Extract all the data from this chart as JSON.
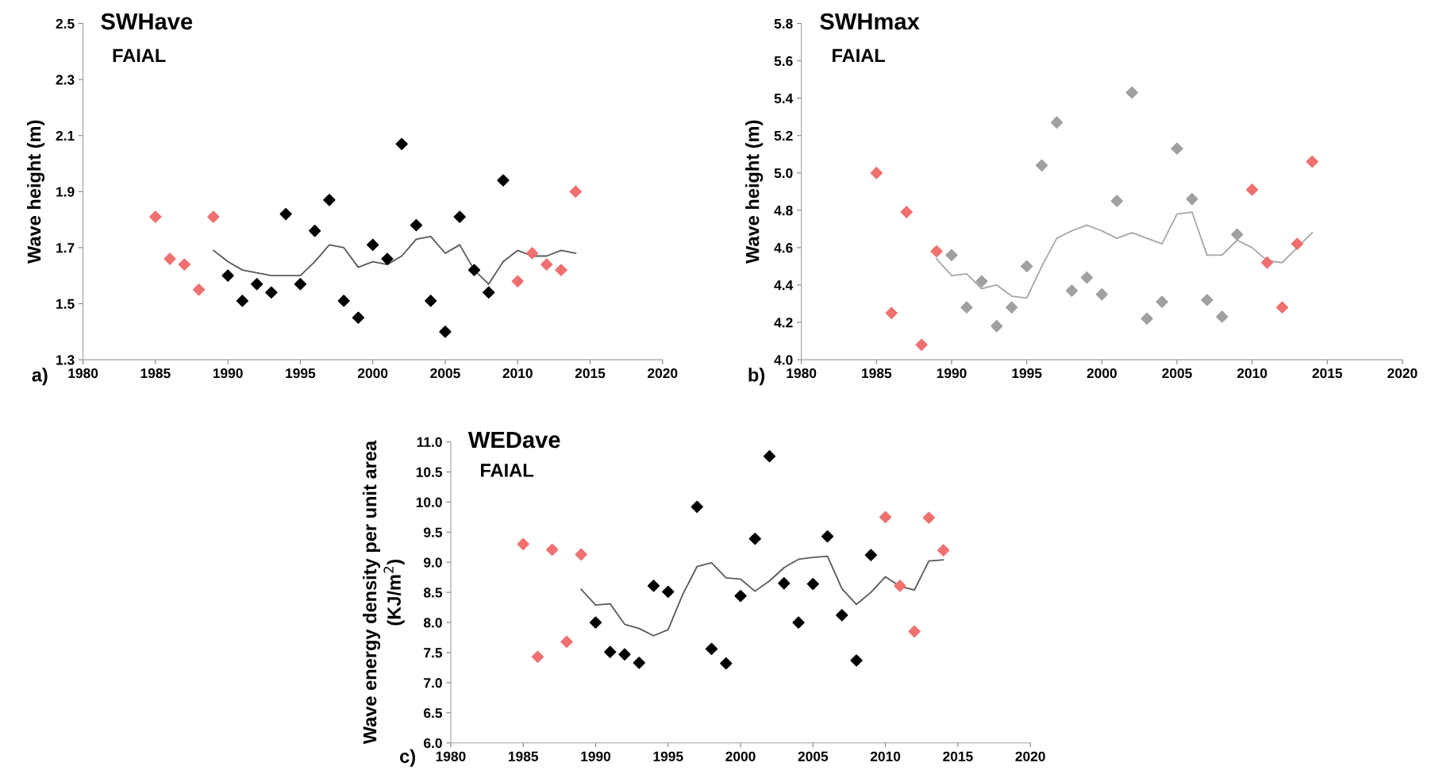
{
  "chart_data": [
    {
      "type": "scatter",
      "title": "SWHave",
      "ylabel": "Wave height (m)",
      "annotations": [
        "FAIAL",
        "a)"
      ],
      "xlim": [
        1980,
        2020
      ],
      "xticks": [
        1980,
        1985,
        1990,
        1995,
        2000,
        2005,
        2010,
        2015,
        2020
      ],
      "ylim": [
        1.3,
        2.5
      ],
      "yticks": [
        1.3,
        1.5,
        1.7,
        1.9,
        2.1,
        2.3,
        2.5
      ],
      "grid": false,
      "legend": false,
      "series": [
        {
          "marker": "diamond",
          "color": "#f07070",
          "x": [
            1985,
            1986,
            1987,
            1988,
            1989,
            2010,
            2011,
            2012,
            2013,
            2014
          ],
          "values": [
            1.81,
            1.66,
            1.64,
            1.55,
            1.81,
            1.58,
            1.68,
            1.64,
            1.62,
            1.9
          ]
        },
        {
          "marker": "diamond",
          "color": "#000000",
          "x": [
            1990,
            1991,
            1992,
            1993,
            1994,
            1995,
            1996,
            1997,
            1998,
            1999,
            2000,
            2001,
            2002,
            2003,
            2004,
            2005,
            2006,
            2007,
            2008,
            2009
          ],
          "values": [
            1.6,
            1.51,
            1.57,
            1.54,
            1.82,
            1.57,
            1.76,
            1.87,
            1.51,
            1.45,
            1.71,
            1.66,
            2.07,
            1.78,
            1.51,
            1.4,
            1.81,
            1.62,
            1.54,
            1.94
          ]
        },
        {
          "type": "line",
          "marker": "none",
          "line_style": "solid",
          "color": "#595959",
          "x": [
            1989,
            1990,
            1991,
            1992,
            1993,
            1994,
            1995,
            1996,
            1997,
            1998,
            1999,
            2000,
            2001,
            2002,
            2003,
            2004,
            2005,
            2006,
            2007,
            2008,
            2009,
            2010,
            2011,
            2012,
            2013,
            2014
          ],
          "values": [
            1.69,
            1.65,
            1.62,
            1.61,
            1.6,
            1.6,
            1.6,
            1.65,
            1.71,
            1.7,
            1.63,
            1.65,
            1.64,
            1.67,
            1.73,
            1.74,
            1.68,
            1.71,
            1.62,
            1.57,
            1.65,
            1.69,
            1.67,
            1.67,
            1.69,
            1.68
          ]
        }
      ]
    },
    {
      "type": "scatter",
      "title": "SWHmax",
      "ylabel": "Wave height (m)",
      "annotations": [
        "FAIAL",
        "b)"
      ],
      "xlim": [
        1980,
        2020
      ],
      "xticks": [
        1980,
        1985,
        1990,
        1995,
        2000,
        2005,
        2010,
        2015,
        2020
      ],
      "ylim": [
        4.0,
        5.8
      ],
      "yticks": [
        {
          "value": 4.0,
          "label": "4.0"
        },
        4.2,
        4.4,
        4.6,
        4.8,
        {
          "value": 5.0,
          "label": "5.0"
        },
        5.2,
        5.4,
        5.6,
        5.8
      ],
      "grid": false,
      "legend": false,
      "series": [
        {
          "marker": "diamond",
          "color": "#f07070",
          "x": [
            1985,
            1986,
            1987,
            1988,
            1989,
            2010,
            2011,
            2012,
            2013,
            2014
          ],
          "values": [
            5.0,
            4.25,
            4.79,
            4.08,
            4.58,
            4.91,
            4.52,
            4.28,
            4.62,
            5.06
          ]
        },
        {
          "marker": "diamond",
          "color": "#a0a0a0",
          "x": [
            1990,
            1991,
            1992,
            1993,
            1994,
            1995,
            1996,
            1997,
            1998,
            1999,
            2000,
            2001,
            2002,
            2003,
            2004,
            2005,
            2006,
            2007,
            2008,
            2009
          ],
          "values": [
            4.56,
            4.28,
            4.42,
            4.18,
            4.28,
            4.5,
            5.04,
            5.27,
            4.37,
            4.44,
            4.35,
            4.85,
            5.43,
            4.22,
            4.31,
            5.13,
            4.86,
            4.32,
            4.23,
            4.67
          ]
        },
        {
          "type": "line",
          "marker": "none",
          "line_style": "solid",
          "color": "#a6a6a6",
          "x": [
            1989,
            1990,
            1991,
            1992,
            1993,
            1994,
            1995,
            1996,
            1997,
            1998,
            1999,
            2000,
            2001,
            2002,
            2003,
            2004,
            2005,
            2006,
            2007,
            2008,
            2009,
            2010,
            2011,
            2012,
            2013,
            2014
          ],
          "values": [
            4.54,
            4.45,
            4.46,
            4.38,
            4.4,
            4.34,
            4.33,
            4.5,
            4.65,
            4.69,
            4.72,
            4.69,
            4.65,
            4.68,
            4.65,
            4.62,
            4.78,
            4.79,
            4.56,
            4.56,
            4.64,
            4.6,
            4.53,
            4.52,
            4.6,
            4.68
          ]
        }
      ]
    },
    {
      "type": "scatter",
      "title": "WEDave",
      "ylabel": "Wave energy density per unit area\n(KJ/m$^{2}$)",
      "annotations": [
        "FAIAL",
        "c)"
      ],
      "xlim": [
        1980,
        2020
      ],
      "xticks": [
        1980,
        1985,
        1990,
        1995,
        2000,
        2005,
        2010,
        2015,
        2020
      ],
      "ylim": [
        6.0,
        11.0
      ],
      "yticks": [
        {
          "value": 6.0,
          "label": "6.0"
        },
        {
          "value": 6.5,
          "label": "6.5"
        },
        {
          "value": 7.0,
          "label": "7.0"
        },
        {
          "value": 7.5,
          "label": "7.5"
        },
        {
          "value": 8.0,
          "label": "8.0"
        },
        {
          "value": 8.5,
          "label": "8.5"
        },
        {
          "value": 9.0,
          "label": "9.0"
        },
        {
          "value": 9.5,
          "label": "9.5"
        },
        {
          "value": 10.0,
          "label": "10.0"
        },
        {
          "value": 10.5,
          "label": "10.5"
        },
        {
          "value": 11.0,
          "label": "11.0"
        }
      ],
      "grid": false,
      "legend": false,
      "series": [
        {
          "marker": "diamond",
          "color": "#f07070",
          "x": [
            1985,
            1986,
            1987,
            1988,
            1989,
            2010,
            2011,
            2012,
            2013,
            2014
          ],
          "values": [
            9.3,
            7.43,
            9.21,
            7.68,
            9.13,
            9.75,
            8.61,
            7.85,
            9.74,
            9.2
          ]
        },
        {
          "marker": "diamond",
          "color": "#000000",
          "x": [
            1990,
            1991,
            1992,
            1993,
            1994,
            1995,
            1997,
            1998,
            1999,
            2000,
            2001,
            2002,
            2003,
            2004,
            2005,
            2006,
            2007,
            2008,
            2009
          ],
          "values": [
            8.0,
            7.51,
            7.47,
            7.33,
            8.61,
            8.51,
            9.92,
            7.56,
            7.32,
            8.44,
            9.39,
            10.76,
            8.65,
            8.0,
            8.64,
            9.43,
            8.12,
            7.37,
            9.12
          ]
        },
        {
          "type": "line",
          "marker": "none",
          "line_style": "solid",
          "color": "#595959",
          "x": [
            1989,
            1990,
            1991,
            1992,
            1993,
            1994,
            1995,
            1996,
            1997,
            1998,
            1999,
            2000,
            2001,
            2002,
            2003,
            2004,
            2005,
            2006,
            2007,
            2008,
            2009,
            2010,
            2011,
            2012,
            2013,
            2014
          ],
          "values": [
            8.55,
            8.29,
            8.31,
            7.97,
            7.9,
            7.78,
            7.88,
            8.46,
            8.93,
            8.99,
            8.74,
            8.72,
            8.52,
            8.69,
            8.91,
            9.05,
            9.08,
            9.1,
            8.56,
            8.3,
            8.5,
            8.76,
            8.6,
            8.54,
            9.02,
            9.04
          ]
        }
      ]
    }
  ]
}
